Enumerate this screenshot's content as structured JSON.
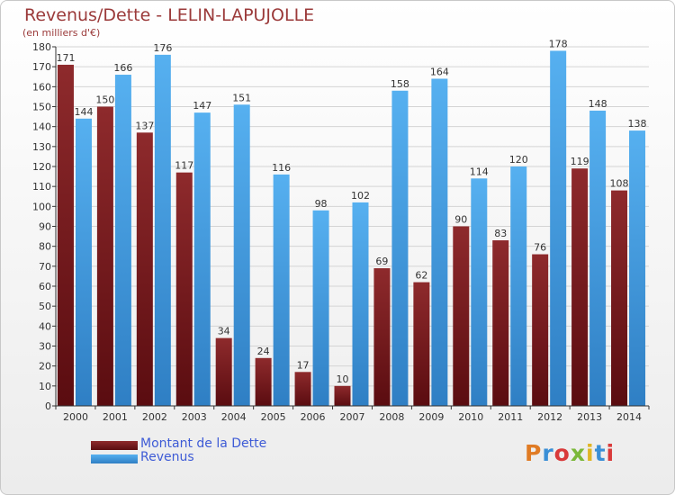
{
  "chart_data": {
    "type": "bar",
    "title": "Revenus/Dette - LELIN-LAPUJOLLE",
    "subtitle": "(en milliers d'€)",
    "categories": [
      "2000",
      "2001",
      "2002",
      "2003",
      "2004",
      "2005",
      "2006",
      "2007",
      "2008",
      "2009",
      "2010",
      "2011",
      "2012",
      "2013",
      "2014"
    ],
    "series": [
      {
        "name": "Montant de la Dette",
        "color": "#7a1a1e",
        "values": [
          171,
          150,
          137,
          117,
          34,
          24,
          17,
          10,
          69,
          62,
          90,
          83,
          76,
          119,
          108
        ]
      },
      {
        "name": "Revenus",
        "color": "#4aa3e8",
        "values": [
          144,
          166,
          176,
          147,
          151,
          116,
          98,
          102,
          158,
          164,
          114,
          120,
          178,
          148,
          138
        ]
      }
    ],
    "ylim": [
      0,
      180
    ],
    "ytick_step": 10,
    "grid": true,
    "legend": "bottom-left"
  },
  "logo": {
    "text": "Proxiti"
  }
}
